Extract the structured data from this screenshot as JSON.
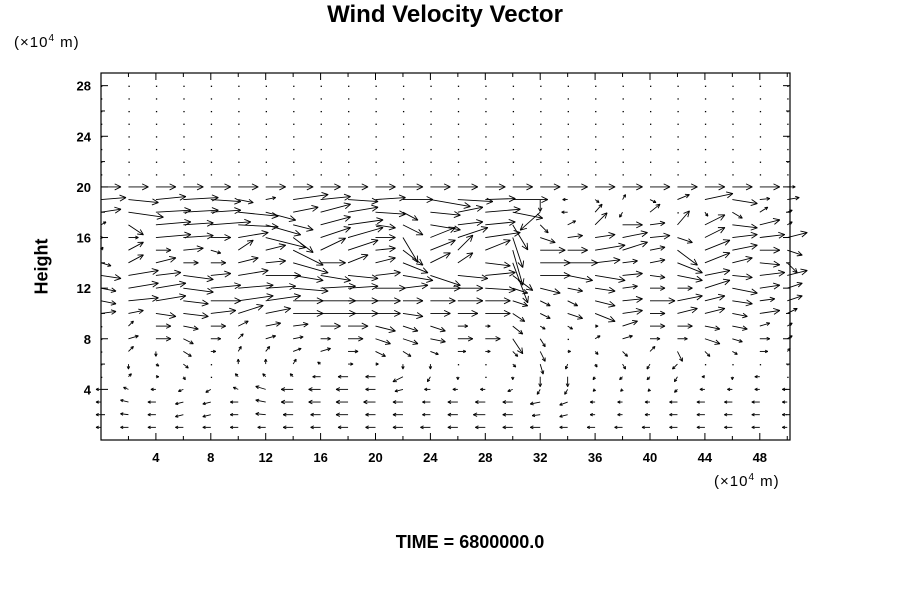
{
  "chart_data": {
    "type": "vector",
    "title": "Wind Velocity Vector",
    "ylabel": "Height",
    "yunit_prefix": "(×10",
    "unit_exp": "4",
    "unit_suffix": " m)",
    "xunit_prefix": "(×10",
    "xunit_suffix": " m)",
    "footer": "TIME = 6800000.0",
    "xlim": [
      0,
      50.2
    ],
    "ylim": [
      0,
      29
    ],
    "xticks": [
      "4",
      "8",
      "12",
      "16",
      "20",
      "24",
      "28",
      "32",
      "36",
      "40",
      "44",
      "48"
    ],
    "yticks": [
      "4",
      "8",
      "12",
      "16",
      "20",
      "24",
      "28"
    ],
    "grid_x": [
      0,
      2,
      4,
      6,
      8,
      10,
      12,
      14,
      16,
      18,
      20,
      22,
      24,
      26,
      28,
      30,
      32,
      34,
      36,
      38,
      40,
      42,
      44,
      46,
      48,
      50
    ],
    "calm_rows": [
      21,
      22,
      23,
      24,
      25,
      26,
      27,
      28
    ],
    "rows": {
      "20": {
        "u": [
          20,
          20,
          20,
          20,
          20,
          20,
          20,
          20,
          20,
          20,
          20,
          20,
          20,
          20,
          20,
          20,
          20,
          20,
          20,
          20,
          20,
          20,
          20,
          20,
          20,
          8
        ],
        "v": [
          0,
          0,
          0,
          0,
          0,
          0,
          0,
          0,
          0,
          0,
          0,
          0,
          0,
          0,
          0,
          0,
          0,
          0,
          0,
          0,
          0,
          0,
          0,
          0,
          0,
          0
        ]
      },
      "19": {
        "u": [
          25,
          30,
          30,
          35,
          30,
          15,
          10,
          35,
          30,
          30,
          30,
          30,
          40,
          35,
          30,
          35,
          0,
          -5,
          4,
          3,
          6,
          12,
          28,
          25,
          10,
          12
        ],
        "v": [
          2,
          -3,
          3,
          2,
          -2,
          -3,
          2,
          5,
          3,
          -2,
          2,
          0,
          -7,
          -2,
          1,
          0,
          -12,
          0,
          -3,
          5,
          -3,
          5,
          6,
          -4,
          1,
          2
        ]
      },
      "18": {
        "u": [
          20,
          35,
          35,
          35,
          30,
          40,
          30,
          25,
          30,
          30,
          30,
          15,
          30,
          25,
          35,
          30,
          -20,
          -6,
          7,
          -3,
          10,
          0,
          3,
          10,
          8,
          5
        ],
        "v": [
          3,
          -5,
          2,
          2,
          2,
          -4,
          -8,
          5,
          8,
          5,
          -2,
          -8,
          -3,
          5,
          3,
          -6,
          -18,
          0,
          8,
          -5,
          8,
          0,
          -4,
          -6,
          5,
          2
        ]
      },
      "17": {
        "u": [
          5,
          15,
          35,
          30,
          40,
          40,
          35,
          20,
          30,
          35,
          20,
          20,
          30,
          25,
          30,
          15,
          8,
          8,
          12,
          20,
          15,
          12,
          20,
          25,
          20,
          5
        ],
        "v": [
          3,
          -10,
          3,
          2,
          3,
          -2,
          -10,
          -5,
          8,
          5,
          -3,
          -10,
          -5,
          3,
          3,
          -25,
          -8,
          4,
          12,
          0,
          2,
          14,
          10,
          -3,
          5,
          3
        ]
      },
      "16": {
        "u": [
          2,
          10,
          35,
          30,
          20,
          30,
          40,
          20,
          30,
          35,
          20,
          15,
          25,
          30,
          35,
          10,
          15,
          15,
          20,
          25,
          20,
          15,
          20,
          25,
          25,
          20
        ],
        "v": [
          0,
          0,
          3,
          2,
          0,
          5,
          -10,
          -15,
          10,
          10,
          0,
          -25,
          10,
          10,
          5,
          -30,
          -5,
          2,
          3,
          5,
          2,
          -5,
          10,
          3,
          3,
          5
        ]
      },
      "15": {
        "u": [
          2,
          15,
          15,
          20,
          10,
          15,
          20,
          30,
          25,
          30,
          20,
          20,
          25,
          15,
          25,
          10,
          25,
          20,
          30,
          25,
          15,
          20,
          25,
          25,
          20,
          15
        ],
        "v": [
          3,
          8,
          0,
          2,
          -3,
          10,
          5,
          -15,
          12,
          10,
          2,
          -15,
          10,
          15,
          10,
          -35,
          0,
          0,
          5,
          8,
          3,
          -15,
          10,
          5,
          0,
          -5
        ]
      },
      "14": {
        "u": [
          10,
          15,
          20,
          15,
          15,
          20,
          20,
          35,
          25,
          20,
          20,
          25,
          20,
          15,
          25,
          15,
          30,
          30,
          25,
          15,
          15,
          25,
          25,
          20,
          20,
          10
        ],
        "v": [
          -3,
          8,
          5,
          0,
          0,
          5,
          2,
          -10,
          0,
          8,
          5,
          -10,
          10,
          10,
          -3,
          -40,
          0,
          0,
          3,
          2,
          3,
          -10,
          10,
          5,
          -2,
          -10
        ]
      },
      "13": {
        "u": [
          20,
          30,
          25,
          30,
          20,
          30,
          35,
          30,
          30,
          30,
          25,
          30,
          30,
          30,
          30,
          20,
          30,
          25,
          30,
          20,
          15,
          25,
          25,
          20,
          25,
          20
        ],
        "v": [
          -3,
          5,
          3,
          -4,
          2,
          5,
          0,
          -5,
          -5,
          -3,
          3,
          -5,
          -10,
          -3,
          3,
          -15,
          0,
          -5,
          -5,
          2,
          -2,
          -5,
          5,
          -2,
          3,
          5
        ]
      },
      "12": {
        "u": [
          15,
          30,
          30,
          30,
          30,
          35,
          30,
          35,
          35,
          30,
          30,
          25,
          30,
          25,
          30,
          15,
          20,
          15,
          20,
          15,
          15,
          15,
          25,
          25,
          20,
          15
        ],
        "v": [
          -3,
          5,
          5,
          -4,
          3,
          3,
          2,
          -3,
          2,
          2,
          0,
          3,
          0,
          0,
          -2,
          -5,
          -5,
          -3,
          -3,
          2,
          0,
          0,
          8,
          -5,
          3,
          5
        ]
      },
      "11": {
        "u": [
          15,
          30,
          30,
          25,
          30,
          35,
          35,
          30,
          35,
          30,
          25,
          20,
          25,
          25,
          25,
          15,
          10,
          10,
          20,
          20,
          25,
          25,
          20,
          20,
          15,
          15
        ],
        "v": [
          -3,
          3,
          5,
          -3,
          0,
          5,
          5,
          0,
          0,
          0,
          0,
          0,
          0,
          0,
          0,
          -5,
          -5,
          -5,
          -5,
          2,
          0,
          5,
          5,
          -3,
          2,
          5
        ]
      },
      "10": {
        "u": [
          15,
          15,
          20,
          25,
          25,
          25,
          25,
          30,
          35,
          30,
          25,
          20,
          20,
          20,
          25,
          12,
          10,
          15,
          20,
          20,
          15,
          20,
          20,
          15,
          20,
          10
        ],
        "v": [
          2,
          3,
          -3,
          -3,
          3,
          8,
          5,
          0,
          0,
          0,
          0,
          -3,
          0,
          0,
          0,
          -8,
          -5,
          -5,
          -8,
          3,
          0,
          5,
          5,
          -3,
          3,
          5
        ]
      },
      "9": {
        "u": [
          0,
          5,
          15,
          15,
          15,
          10,
          15,
          15,
          20,
          20,
          20,
          15,
          15,
          10,
          5,
          10,
          5,
          5,
          3,
          15,
          15,
          15,
          15,
          15,
          10,
          5
        ],
        "v": [
          0,
          5,
          0,
          -3,
          0,
          5,
          3,
          2,
          0,
          0,
          -5,
          -5,
          -5,
          0,
          0,
          -8,
          -3,
          -3,
          0,
          5,
          0,
          0,
          -3,
          -3,
          3,
          3
        ]
      },
      "8": {
        "u": [
          0,
          10,
          15,
          10,
          10,
          5,
          10,
          10,
          10,
          15,
          15,
          15,
          15,
          15,
          15,
          10,
          5,
          0,
          5,
          10,
          10,
          10,
          15,
          10,
          10,
          5
        ],
        "v": [
          0,
          3,
          0,
          -5,
          0,
          5,
          3,
          2,
          0,
          0,
          -5,
          -5,
          -3,
          0,
          0,
          -15,
          -8,
          0,
          3,
          3,
          0,
          0,
          -5,
          -3,
          0,
          3
        ]
      },
      "7": {
        "u": [
          0,
          5,
          0,
          8,
          5,
          3,
          4,
          8,
          10,
          10,
          10,
          8,
          8,
          8,
          5,
          5,
          5,
          3,
          3,
          5,
          5,
          5,
          5,
          5,
          8,
          3
        ],
        "v": [
          0,
          5,
          -5,
          -5,
          0,
          5,
          5,
          3,
          3,
          0,
          -5,
          -5,
          -3,
          0,
          0,
          -5,
          -10,
          0,
          -3,
          -5,
          5,
          -10,
          -5,
          -3,
          0,
          3
        ]
      },
      "6": {
        "u": [
          0,
          0,
          3,
          5,
          0,
          0,
          0,
          3,
          -3,
          5,
          3,
          0,
          0,
          0,
          0,
          3,
          3,
          -2,
          2,
          3,
          -3,
          -5,
          0,
          0,
          0,
          0
        ],
        "v": [
          0,
          -5,
          -2,
          -4,
          0,
          5,
          5,
          5,
          2,
          0,
          0,
          -5,
          -5,
          0,
          0,
          -3,
          -10,
          -5,
          -3,
          -5,
          -5,
          -5,
          0,
          0,
          0,
          0
        ]
      },
      "5": {
        "u": [
          0,
          3,
          3,
          2,
          0,
          -3,
          -3,
          -3,
          -8,
          -10,
          -10,
          -10,
          -3,
          0,
          0,
          0,
          0,
          0,
          -2,
          -3,
          -3,
          -3,
          -3,
          0,
          -5,
          0
        ],
        "v": [
          0,
          3,
          0,
          -3,
          0,
          3,
          3,
          3,
          0,
          0,
          0,
          -5,
          -5,
          -3,
          0,
          -3,
          -10,
          -10,
          -3,
          -3,
          -3,
          -5,
          0,
          -3,
          0,
          0
        ]
      },
      "4": {
        "u": [
          -5,
          -5,
          -5,
          -5,
          -5,
          -5,
          -10,
          -12,
          -12,
          -12,
          -10,
          -8,
          -6,
          -5,
          -5,
          -5,
          -3,
          -3,
          -2,
          -2,
          -2,
          -3,
          -5,
          -5,
          -5,
          -5
        ],
        "v": [
          0,
          2,
          0,
          -2,
          -3,
          2,
          3,
          0,
          0,
          0,
          0,
          -2,
          0,
          0,
          0,
          -2,
          -5,
          -5,
          -2,
          -2,
          -2,
          -3,
          0,
          0,
          0,
          0
        ]
      },
      "3": {
        "u": [
          -5,
          -8,
          -8,
          -8,
          -8,
          -8,
          -10,
          -12,
          -12,
          -12,
          -12,
          -10,
          -8,
          -10,
          -10,
          -10,
          -10,
          -8,
          -5,
          -5,
          -5,
          -8,
          -8,
          -8,
          -8,
          -5
        ],
        "v": [
          0,
          2,
          0,
          -2,
          -2,
          0,
          2,
          0,
          0,
          0,
          0,
          0,
          0,
          0,
          0,
          0,
          -2,
          -3,
          0,
          0,
          0,
          0,
          0,
          0,
          0,
          0
        ]
      },
      "2": {
        "u": [
          -5,
          -8,
          -8,
          -8,
          -8,
          -8,
          -10,
          -10,
          -10,
          -12,
          -10,
          -10,
          -8,
          -10,
          -12,
          -10,
          -8,
          -8,
          -5,
          -5,
          -5,
          -8,
          -8,
          -8,
          -8,
          -5
        ],
        "v": [
          0,
          1,
          0,
          -2,
          -2,
          0,
          1,
          0,
          0,
          0,
          0,
          0,
          0,
          0,
          0,
          0,
          -1,
          -2,
          0,
          0,
          0,
          0,
          0,
          0,
          0,
          0
        ]
      },
      "1": {
        "u": [
          -5,
          -8,
          -8,
          -8,
          -8,
          -8,
          -8,
          -10,
          -10,
          -10,
          -10,
          -10,
          -10,
          -10,
          -10,
          -10,
          -10,
          -8,
          -8,
          -8,
          -8,
          -8,
          -8,
          -8,
          -8,
          -5
        ],
        "v": [
          0,
          0,
          0,
          0,
          0,
          0,
          0,
          0,
          0,
          0,
          0,
          0,
          0,
          0,
          0,
          0,
          0,
          0,
          0,
          0,
          0,
          0,
          0,
          0,
          0,
          0
        ]
      }
    }
  }
}
